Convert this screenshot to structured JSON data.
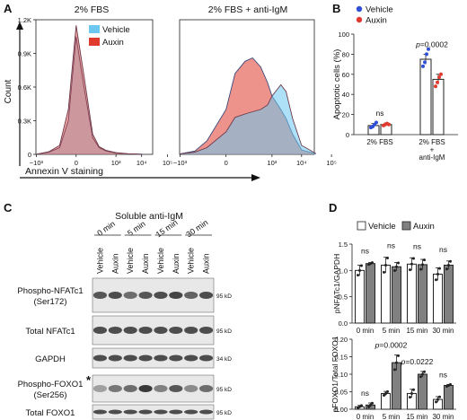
{
  "panels": {
    "A": "A",
    "B": "B",
    "C": "C",
    "D": "D"
  },
  "panel_a": {
    "title_left": "2% FBS",
    "title_right": "2% FBS + anti-IgM",
    "ylabel": "Count",
    "xlabel": "Annexin V staining",
    "yticks": [
      "0",
      "0.3K",
      "0.6K",
      "0.9K",
      "1.2K"
    ],
    "xticks": [
      "−10³",
      "0",
      "10³",
      "10⁴",
      "10⁵"
    ],
    "legend": [
      {
        "label": "Vehicle",
        "color": "#6cc8f0"
      },
      {
        "label": "Auxin",
        "color": "#e03a2e"
      }
    ]
  },
  "panel_c": {
    "header": "Soluble anti-IgM",
    "timepoints": [
      "0 min",
      "5 min",
      "15 min",
      "30 min"
    ],
    "lanes": [
      "Vehicle",
      "Auxin",
      "Vehicle",
      "Auxin",
      "Vehicle",
      "Auxin",
      "Vehicle",
      "Auxin"
    ],
    "blots": [
      {
        "label": "Phospho-NFATc1\n(Ser172)",
        "line1": "Phospho-NFATc1",
        "line2": "(Ser172)",
        "kd": "95 kD"
      },
      {
        "label": "Total NFATc1",
        "line1": "Total NFATc1",
        "line2": "",
        "kd": "95 kD"
      },
      {
        "label": "GAPDH",
        "line1": "GAPDH",
        "line2": "",
        "kd": "34 kD"
      },
      {
        "label": "Phospho-FOXO1\n(Ser256)",
        "line1": "Phospho-FOXO1",
        "line2": "(Ser256)",
        "kd": "95 kD"
      },
      {
        "label": "Total FOXO1",
        "line1": "Total FOXO1",
        "line2": "",
        "kd": "95 kD"
      }
    ],
    "star": "*"
  },
  "chart_data": [
    {
      "type": "line",
      "panel": "A-left",
      "title": "2% FBS",
      "xlabel": "Annexin V staining",
      "ylabel": "Count",
      "xscale": "biexponential",
      "ylim": [
        0,
        1200
      ],
      "series": [
        {
          "name": "Vehicle",
          "color": "#6cc8f0",
          "x": [
            -1000,
            -300,
            -100,
            -30,
            0,
            30,
            100,
            200,
            400,
            1000,
            3000,
            10000
          ],
          "y": [
            0,
            20,
            60,
            300,
            1050,
            600,
            150,
            60,
            30,
            12,
            5,
            2
          ]
        },
        {
          "name": "Auxin",
          "color": "#e03a2e",
          "x": [
            -1000,
            -300,
            -100,
            -30,
            0,
            30,
            100,
            200,
            400,
            1000,
            3000,
            10000
          ],
          "y": [
            0,
            25,
            80,
            400,
            1150,
            700,
            180,
            70,
            35,
            15,
            6,
            2
          ]
        }
      ]
    },
    {
      "type": "area",
      "panel": "A-right",
      "title": "2% FBS + anti-IgM",
      "xlabel": "Annexin V staining",
      "xscale": "biexponential",
      "ylim": [
        0,
        1200
      ],
      "series": [
        {
          "name": "Auxin",
          "color": "#e03a2e",
          "x": [
            -1000,
            -300,
            -100,
            0,
            30,
            100,
            200,
            400,
            700,
            1000,
            2000,
            3000,
            5000,
            10000,
            30000
          ],
          "y": [
            5,
            30,
            120,
            400,
            720,
            830,
            860,
            780,
            640,
            520,
            400,
            320,
            180,
            40,
            5
          ]
        },
        {
          "name": "Vehicle",
          "color": "#6cc8f0",
          "x": [
            -1000,
            -300,
            -100,
            0,
            30,
            100,
            200,
            400,
            700,
            1000,
            2000,
            3000,
            5000,
            10000,
            30000
          ],
          "y": [
            5,
            20,
            60,
            200,
            330,
            360,
            380,
            400,
            440,
            520,
            620,
            560,
            320,
            80,
            8
          ]
        }
      ]
    },
    {
      "type": "bar",
      "panel": "B",
      "ylabel": "Apoptotic cells (%)",
      "ylim": [
        0,
        100
      ],
      "yticks": [
        "0",
        "20",
        "40",
        "60",
        "80",
        "100"
      ],
      "categories": [
        "2% FBS",
        "2% FBS\n+\nanti-IgM"
      ],
      "category_lines": [
        [
          "2% FBS"
        ],
        [
          "2% FBS",
          "+",
          "anti-IgM"
        ]
      ],
      "series": [
        {
          "name": "Vehicle",
          "color": "#2e4fd6",
          "values": [
            9,
            75
          ]
        },
        {
          "name": "Auxin",
          "color": "#e03a2e",
          "values": [
            10,
            55
          ]
        }
      ],
      "errors": [
        [
          2,
          5
        ],
        [
          1.5,
          5
        ]
      ],
      "points": [
        [
          [
            7,
            8,
            10,
            12
          ],
          [
            68,
            72,
            80,
            85
          ]
        ],
        [
          [
            9,
            10,
            11,
            10
          ],
          [
            48,
            52,
            57,
            60
          ]
        ]
      ],
      "annotations": [
        "ns",
        "p=0.0002"
      ]
    },
    {
      "type": "bar",
      "panel": "D-top",
      "ylabel": "pNFATc1/GAPDH",
      "ylim": [
        0,
        1.5
      ],
      "yticks": [
        "0.0",
        "0.5",
        "1.0",
        "1.5"
      ],
      "categories": [
        "0 min",
        "5 min",
        "15 min",
        "30 min"
      ],
      "series": [
        {
          "name": "Vehicle",
          "color": "#ffffff",
          "values": [
            1.0,
            1.1,
            1.12,
            0.93
          ]
        },
        {
          "name": "Auxin",
          "color": "#808080",
          "values": [
            1.13,
            1.07,
            1.11,
            1.1
          ]
        }
      ],
      "errors": [
        [
          0.1,
          0.15,
          0.12,
          0.12
        ],
        [
          0.02,
          0.08,
          0.1,
          0.08
        ]
      ],
      "annotations": [
        "ns",
        "ns",
        "ns",
        "ns"
      ]
    },
    {
      "type": "bar",
      "panel": "D-bottom",
      "ylabel": "pFOXO1/Total FOXO1",
      "ylim": [
        0,
        0.2
      ],
      "yticks": [
        "0.00",
        "0.05",
        "0.10",
        "0.15",
        "0.20"
      ],
      "categories": [
        "0 min",
        "5 min",
        "15 min",
        "30 min"
      ],
      "series": [
        {
          "name": "Vehicle",
          "color": "#ffffff",
          "values": [
            0.007,
            0.045,
            0.045,
            0.028
          ]
        },
        {
          "name": "Auxin",
          "color": "#808080",
          "values": [
            0.012,
            0.133,
            0.1,
            0.068
          ]
        }
      ],
      "errors": [
        [
          0.004,
          0.006,
          0.012,
          0.008
        ],
        [
          0.006,
          0.022,
          0.008,
          0.003
        ]
      ],
      "annotations": [
        "ns",
        "p=0.0002",
        "p=0.0222",
        "ns"
      ]
    }
  ]
}
